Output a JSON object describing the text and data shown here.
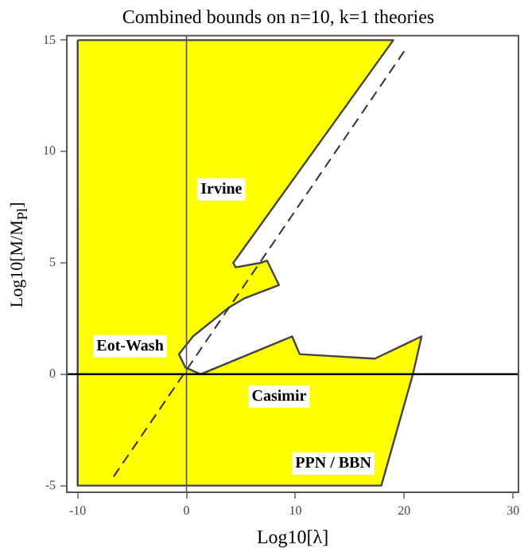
{
  "chart_data": {
    "type": "area",
    "title": "Combined bounds on n=10, k=1 theories",
    "xlabel": "Log10[λ]",
    "ylabel": "Log10[M/M$_{Pl}$]",
    "series": [
      {
        "color": "#ffff00",
        "x": [
          -10,
          19,
          4.3,
          4.5,
          6.8,
          7.4,
          8.5,
          5.3,
          3.9,
          0.6,
          -0.7,
          -0.1,
          1.3,
          9.7,
          10.4,
          17.3,
          21.6,
          20.8,
          17.9,
          -10,
          -10
        ],
        "values": [
          15,
          15,
          5.0,
          4.8,
          5.0,
          5.1,
          4.0,
          3.4,
          3.0,
          1.7,
          0.9,
          0.3,
          0.0,
          1.7,
          0.9,
          0.7,
          1.7,
          0,
          -5,
          -5,
          15
        ]
      },
      {
        "type": "line",
        "color": "#333333",
        "line_style": "dashed",
        "x": [
          -6.7,
          20
        ],
        "values": [
          -4.6,
          14.5
        ]
      }
    ],
    "xlim": [
      -11,
      30.5
    ],
    "xticks": [
      -10,
      0,
      10,
      20,
      30
    ],
    "ylim": [
      -5.3,
      15.2
    ],
    "yticks": [
      -5,
      0,
      5,
      10,
      15
    ],
    "grid": false,
    "legend": false,
    "ref_lines": [
      {
        "axis": "x",
        "value": 0
      },
      {
        "axis": "y",
        "value": 0
      }
    ],
    "annotations": [
      {
        "text": "Irvine",
        "x": 3.2,
        "y": 8.3
      },
      "Eot-Wash",
      {
        "text": "Casimir",
        "x": 8.5,
        "y": -1
      },
      "PPN / BBN"
    ]
  }
}
